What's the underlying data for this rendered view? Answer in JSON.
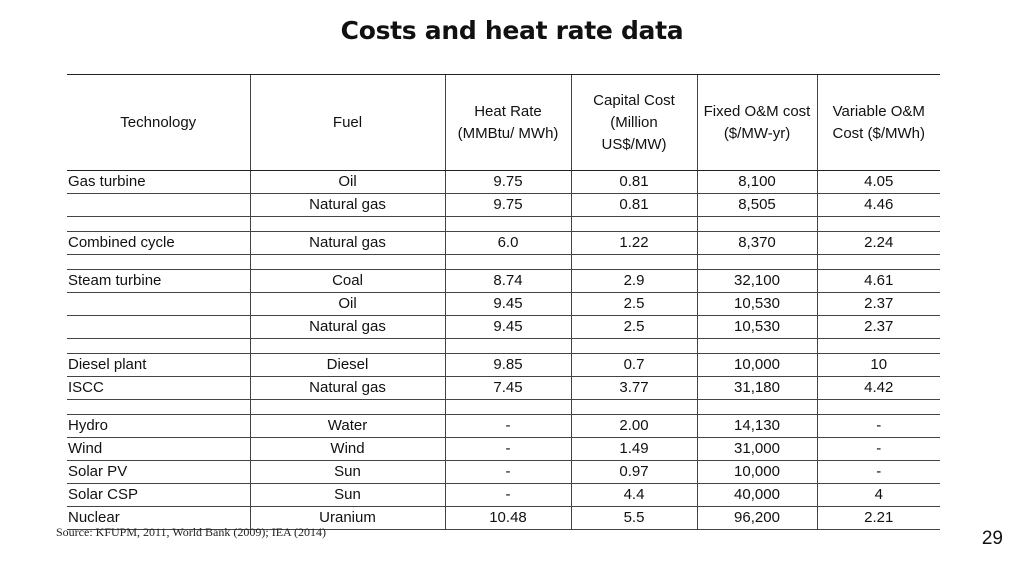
{
  "title": "Costs and heat rate data",
  "headers": {
    "technology": "Technology",
    "fuel": "Fuel",
    "heat_rate_line1": "Heat Rate",
    "heat_rate_line2": "(MMBtu/ MWh)",
    "capital_line1": "Capital Cost",
    "capital_line2": "(Million",
    "capital_line3": "US$/MW)",
    "fixed_line1": "Fixed O&M cost",
    "fixed_line2": "($/MW-yr)",
    "variable_line1": "Variable O&M",
    "variable_line2": "Cost ($/MWh)"
  },
  "rows": [
    {
      "technology": "Gas turbine",
      "fuel": "Oil",
      "heat_rate": "9.75",
      "capital": "0.81",
      "fixed": "8,100",
      "variable": "4.05"
    },
    {
      "technology": "",
      "fuel": "Natural gas",
      "heat_rate": "9.75",
      "capital": "0.81",
      "fixed": "8,505",
      "variable": "4.46"
    },
    {
      "technology": "Combined cycle",
      "fuel": "Natural gas",
      "heat_rate": "6.0",
      "capital": "1.22",
      "fixed": "8,370",
      "variable": "2.24"
    },
    {
      "technology": "Steam turbine",
      "fuel": "Coal",
      "heat_rate": "8.74",
      "capital": "2.9",
      "fixed": "32,100",
      "variable": "4.61"
    },
    {
      "technology": "",
      "fuel": "Oil",
      "heat_rate": "9.45",
      "capital": "2.5",
      "fixed": "10,530",
      "variable": "2.37"
    },
    {
      "technology": "",
      "fuel": "Natural gas",
      "heat_rate": "9.45",
      "capital": "2.5",
      "fixed": "10,530",
      "variable": "2.37"
    },
    {
      "technology": "Diesel plant",
      "fuel": "Diesel",
      "heat_rate": "9.85",
      "capital": "0.7",
      "fixed": "10,000",
      "variable": "10"
    },
    {
      "technology": "ISCC",
      "fuel": "Natural gas",
      "heat_rate": "7.45",
      "capital": "3.77",
      "fixed": "31,180",
      "variable": "4.42"
    },
    {
      "technology": "Hydro",
      "fuel": "Water",
      "heat_rate": "-",
      "capital": "2.00",
      "fixed": "14,130",
      "variable": "-"
    },
    {
      "technology": "Wind",
      "fuel": "Wind",
      "heat_rate": "-",
      "capital": "1.49",
      "fixed": "31,000",
      "variable": "-"
    },
    {
      "technology": "Solar PV",
      "fuel": "Sun",
      "heat_rate": "-",
      "capital": "0.97",
      "fixed": "10,000",
      "variable": "-"
    },
    {
      "technology": "Solar CSP",
      "fuel": "Sun",
      "heat_rate": "-",
      "capital": "4.4",
      "fixed": "40,000",
      "variable": "4"
    },
    {
      "technology": "Nuclear",
      "fuel": "Uranium",
      "heat_rate": "10.48",
      "capital": "5.5",
      "fixed": "96,200",
      "variable": "2.21"
    }
  ],
  "source": "Source: KFUPM, 2011, World Bank (2009); IEA (2014)",
  "page_number": "29"
}
